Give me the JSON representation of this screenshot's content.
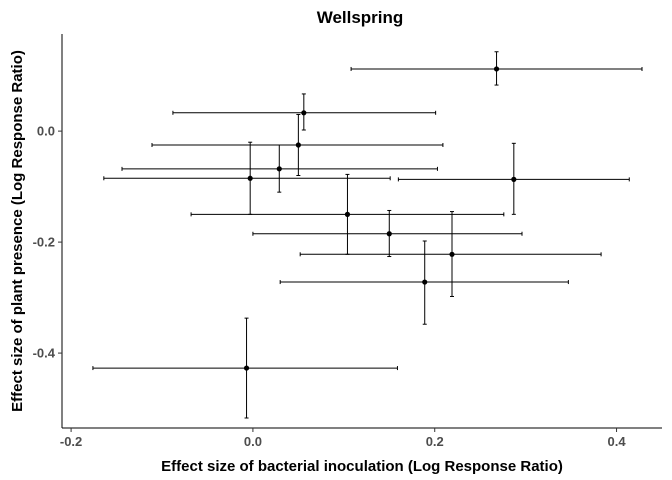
{
  "chart_data": {
    "type": "scatter",
    "title": "Wellspring",
    "xlabel": "Effect size of bacterial inoculation (Log Response Ratio)",
    "ylabel": "Effect size of plant presence (Log Response Ratio)",
    "xlim": [
      -0.21,
      0.45
    ],
    "ylim": [
      -0.535,
      0.175
    ],
    "x_ticks": [
      -0.2,
      0.0,
      0.2,
      0.4
    ],
    "x_tick_labels": [
      "-0.2",
      "0.0",
      "0.2",
      "0.4"
    ],
    "y_ticks": [
      0.0,
      -0.2,
      -0.4
    ],
    "y_tick_labels": [
      "0.0",
      "-0.2",
      "-0.4"
    ],
    "grid": false,
    "error_bars": true,
    "points": [
      {
        "x": 0.268,
        "y": 0.112,
        "xmin": 0.108,
        "xmax": 0.428,
        "ymin": 0.083,
        "ymax": 0.143
      },
      {
        "x": 0.056,
        "y": 0.033,
        "xmin": -0.088,
        "xmax": 0.201,
        "ymin": 0.002,
        "ymax": 0.067
      },
      {
        "x": 0.05,
        "y": -0.025,
        "xmin": -0.111,
        "xmax": 0.209,
        "ymin": -0.08,
        "ymax": 0.03
      },
      {
        "x": 0.029,
        "y": -0.068,
        "xmin": -0.144,
        "xmax": 0.203,
        "ymin": -0.11,
        "ymax": -0.025
      },
      {
        "x": -0.003,
        "y": -0.085,
        "xmin": -0.164,
        "xmax": 0.151,
        "ymin": -0.15,
        "ymax": -0.02
      },
      {
        "x": 0.287,
        "y": -0.087,
        "xmin": 0.16,
        "xmax": 0.414,
        "ymin": -0.15,
        "ymax": -0.022
      },
      {
        "x": 0.104,
        "y": -0.15,
        "xmin": -0.068,
        "xmax": 0.276,
        "ymin": -0.222,
        "ymax": -0.078
      },
      {
        "x": 0.15,
        "y": -0.185,
        "xmin": 0.0,
        "xmax": 0.296,
        "ymin": -0.226,
        "ymax": -0.143
      },
      {
        "x": 0.219,
        "y": -0.222,
        "xmin": 0.052,
        "xmax": 0.383,
        "ymin": -0.298,
        "ymax": -0.145
      },
      {
        "x": 0.189,
        "y": -0.272,
        "xmin": 0.03,
        "xmax": 0.347,
        "ymin": -0.348,
        "ymax": -0.198
      },
      {
        "x": -0.007,
        "y": -0.427,
        "xmin": -0.176,
        "xmax": 0.159,
        "ymin": -0.517,
        "ymax": -0.337
      }
    ]
  }
}
